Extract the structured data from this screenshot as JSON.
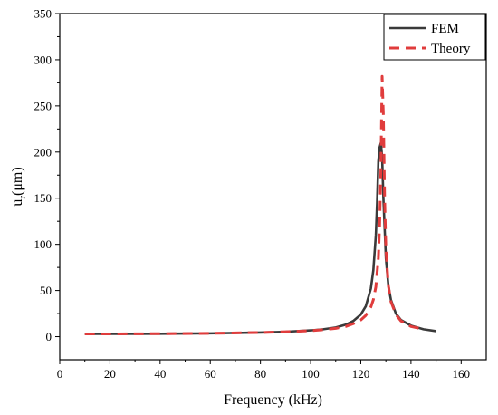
{
  "chart_data": {
    "type": "line",
    "title": "",
    "xlabel": "Frequency (kHz)",
    "ylabel_main": "u",
    "ylabel_sub": "r",
    "ylabel_unit": "(μm)",
    "xlim": [
      0,
      170
    ],
    "ylim": [
      -25,
      350
    ],
    "xticks": [
      0,
      20,
      40,
      60,
      80,
      100,
      120,
      140,
      160
    ],
    "yticks": [
      0,
      50,
      100,
      150,
      200,
      250,
      300,
      350
    ],
    "grid": false,
    "legend_position": "top-right",
    "series": [
      {
        "name": "FEM",
        "color": "#3a3a3a",
        "dash": "solid",
        "x": [
          10,
          20,
          40,
          60,
          80,
          90,
          100,
          105,
          110,
          114,
          117,
          120,
          122,
          124,
          125,
          126,
          126.5,
          127,
          127.5,
          128,
          128.5,
          129,
          130,
          131,
          132,
          134,
          136,
          140,
          145,
          150
        ],
        "y": [
          3,
          3,
          3.2,
          3.6,
          4.5,
          5.3,
          6.8,
          8,
          10,
          13,
          17,
          24,
          33,
          52,
          72,
          110,
          145,
          190,
          205,
          210,
          195,
          150,
          85,
          55,
          40,
          25,
          18,
          12,
          8,
          6
        ]
      },
      {
        "name": "Theory",
        "color": "#e03c3c",
        "dash": "dashed",
        "x": [
          10,
          20,
          40,
          60,
          80,
          90,
          100,
          105,
          110,
          114,
          117,
          120,
          122,
          124,
          125,
          126,
          127,
          127.5,
          128,
          128.5,
          129,
          129.5,
          130,
          131,
          132,
          134,
          136,
          140,
          145
        ],
        "y": [
          3,
          3,
          3.2,
          3.6,
          4.5,
          5.3,
          6.5,
          7.5,
          9,
          11,
          14,
          18,
          23,
          32,
          40,
          54,
          85,
          120,
          180,
          282,
          240,
          150,
          95,
          55,
          38,
          24,
          17,
          11,
          8
        ]
      }
    ]
  }
}
